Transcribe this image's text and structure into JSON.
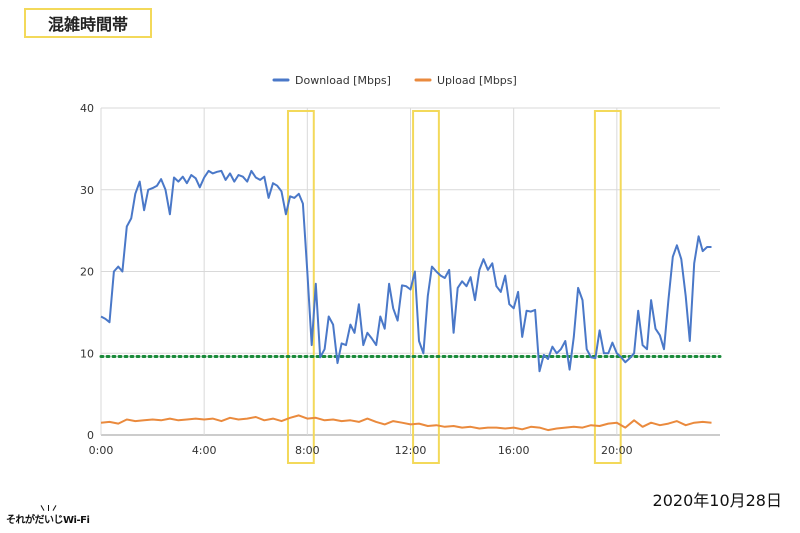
{
  "header": {
    "title": "混雑時間帯"
  },
  "footer": {
    "date": "2020年10月28日",
    "logo_text": "それがだいじWi-Fi"
  },
  "colors": {
    "download": "#4a78c8",
    "upload": "#ea8a3d",
    "threshold": "#1a8a3a",
    "highlight": "#f3d95a",
    "grid": "#d9d9d9"
  },
  "chart_data": {
    "type": "line",
    "title": "",
    "xlabel": "",
    "ylabel": "",
    "x_range_hours": [
      0,
      24
    ],
    "ylim": [
      0,
      40
    ],
    "x_ticks": [
      {
        "hour": 0,
        "label": "0:00"
      },
      {
        "hour": 4,
        "label": "4:00"
      },
      {
        "hour": 8,
        "label": "8:00"
      },
      {
        "hour": 12,
        "label": "12:00"
      },
      {
        "hour": 16,
        "label": "16:00"
      },
      {
        "hour": 20,
        "label": "20:00"
      }
    ],
    "y_ticks": [
      0,
      10,
      20,
      30,
      40
    ],
    "grid": true,
    "legend_position": "top-center",
    "threshold_line": {
      "value": 9.6,
      "style": "dotted"
    },
    "highlight_ranges": [
      [
        7.25,
        8.25
      ],
      [
        12.1,
        13.1
      ],
      [
        19.15,
        20.15
      ]
    ],
    "series": [
      {
        "name": "Download [Mbps]",
        "color": "#4a78c8",
        "points": [
          [
            0.0,
            14.5
          ],
          [
            0.17,
            14.2
          ],
          [
            0.33,
            13.8
          ],
          [
            0.5,
            20.0
          ],
          [
            0.67,
            20.6
          ],
          [
            0.83,
            20.0
          ],
          [
            1.0,
            25.5
          ],
          [
            1.17,
            26.5
          ],
          [
            1.33,
            29.5
          ],
          [
            1.5,
            31.0
          ],
          [
            1.67,
            27.5
          ],
          [
            1.83,
            30.0
          ],
          [
            2.0,
            30.2
          ],
          [
            2.17,
            30.5
          ],
          [
            2.33,
            31.3
          ],
          [
            2.5,
            30.0
          ],
          [
            2.67,
            27.0
          ],
          [
            2.83,
            31.5
          ],
          [
            3.0,
            31.0
          ],
          [
            3.17,
            31.6
          ],
          [
            3.33,
            30.8
          ],
          [
            3.5,
            31.8
          ],
          [
            3.67,
            31.4
          ],
          [
            3.83,
            30.3
          ],
          [
            4.0,
            31.5
          ],
          [
            4.17,
            32.3
          ],
          [
            4.33,
            32.0
          ],
          [
            4.5,
            32.2
          ],
          [
            4.67,
            32.3
          ],
          [
            4.83,
            31.2
          ],
          [
            5.0,
            32.0
          ],
          [
            5.17,
            31.0
          ],
          [
            5.33,
            31.8
          ],
          [
            5.5,
            31.6
          ],
          [
            5.67,
            31.0
          ],
          [
            5.83,
            32.3
          ],
          [
            6.0,
            31.5
          ],
          [
            6.17,
            31.2
          ],
          [
            6.33,
            31.6
          ],
          [
            6.5,
            29.0
          ],
          [
            6.67,
            30.8
          ],
          [
            6.83,
            30.5
          ],
          [
            7.0,
            29.8
          ],
          [
            7.17,
            27.0
          ],
          [
            7.33,
            29.2
          ],
          [
            7.5,
            29.0
          ],
          [
            7.67,
            29.5
          ],
          [
            7.83,
            28.3
          ],
          [
            8.0,
            20.0
          ],
          [
            8.17,
            11.0
          ],
          [
            8.33,
            18.5
          ],
          [
            8.5,
            9.5
          ],
          [
            8.67,
            10.5
          ],
          [
            8.83,
            14.5
          ],
          [
            9.0,
            13.5
          ],
          [
            9.17,
            8.8
          ],
          [
            9.33,
            11.2
          ],
          [
            9.5,
            11.0
          ],
          [
            9.67,
            13.5
          ],
          [
            9.83,
            12.5
          ],
          [
            10.0,
            16.0
          ],
          [
            10.17,
            11.0
          ],
          [
            10.33,
            12.5
          ],
          [
            10.5,
            11.8
          ],
          [
            10.67,
            11.0
          ],
          [
            10.83,
            14.5
          ],
          [
            11.0,
            13.0
          ],
          [
            11.17,
            18.5
          ],
          [
            11.33,
            15.5
          ],
          [
            11.5,
            14.0
          ],
          [
            11.67,
            18.3
          ],
          [
            11.83,
            18.2
          ],
          [
            12.0,
            17.8
          ],
          [
            12.17,
            20.0
          ],
          [
            12.33,
            11.5
          ],
          [
            12.5,
            10.0
          ],
          [
            12.67,
            17.0
          ],
          [
            12.83,
            20.6
          ],
          [
            13.0,
            20.0
          ],
          [
            13.17,
            19.5
          ],
          [
            13.33,
            19.2
          ],
          [
            13.5,
            20.2
          ],
          [
            13.67,
            12.5
          ],
          [
            13.83,
            18.0
          ],
          [
            14.0,
            18.8
          ],
          [
            14.17,
            18.2
          ],
          [
            14.33,
            19.3
          ],
          [
            14.5,
            16.5
          ],
          [
            14.67,
            20.2
          ],
          [
            14.83,
            21.5
          ],
          [
            15.0,
            20.2
          ],
          [
            15.17,
            21.0
          ],
          [
            15.33,
            18.2
          ],
          [
            15.5,
            17.5
          ],
          [
            15.67,
            19.5
          ],
          [
            15.83,
            16.0
          ],
          [
            16.0,
            15.5
          ],
          [
            16.17,
            17.5
          ],
          [
            16.33,
            12.0
          ],
          [
            16.5,
            15.2
          ],
          [
            16.67,
            15.1
          ],
          [
            16.83,
            15.3
          ],
          [
            17.0,
            7.8
          ],
          [
            17.17,
            9.8
          ],
          [
            17.33,
            9.3
          ],
          [
            17.5,
            10.8
          ],
          [
            17.67,
            10.0
          ],
          [
            17.83,
            10.5
          ],
          [
            18.0,
            11.5
          ],
          [
            18.17,
            8.0
          ],
          [
            18.33,
            12.0
          ],
          [
            18.5,
            18.0
          ],
          [
            18.67,
            16.5
          ],
          [
            18.83,
            10.5
          ],
          [
            19.0,
            9.5
          ],
          [
            19.17,
            9.4
          ],
          [
            19.33,
            12.8
          ],
          [
            19.5,
            10.0
          ],
          [
            19.67,
            10.0
          ],
          [
            19.83,
            11.3
          ],
          [
            20.0,
            10.0
          ],
          [
            20.17,
            9.5
          ],
          [
            20.33,
            8.9
          ],
          [
            20.5,
            9.4
          ],
          [
            20.67,
            10.0
          ],
          [
            20.83,
            15.2
          ],
          [
            21.0,
            11.0
          ],
          [
            21.17,
            10.5
          ],
          [
            21.33,
            16.5
          ],
          [
            21.5,
            13.0
          ],
          [
            21.67,
            12.2
          ],
          [
            21.83,
            10.5
          ],
          [
            22.0,
            16.5
          ],
          [
            22.17,
            21.8
          ],
          [
            22.33,
            23.2
          ],
          [
            22.5,
            21.5
          ],
          [
            22.67,
            17.0
          ],
          [
            22.83,
            11.5
          ],
          [
            23.0,
            21.0
          ],
          [
            23.17,
            24.3
          ],
          [
            23.33,
            22.5
          ],
          [
            23.5,
            23.0
          ],
          [
            23.67,
            23.0
          ]
        ]
      },
      {
        "name": "Upload [Mbps]",
        "color": "#ea8a3d",
        "points": [
          [
            0.0,
            1.5
          ],
          [
            0.33,
            1.6
          ],
          [
            0.67,
            1.4
          ],
          [
            1.0,
            1.9
          ],
          [
            1.33,
            1.7
          ],
          [
            1.67,
            1.8
          ],
          [
            2.0,
            1.9
          ],
          [
            2.33,
            1.8
          ],
          [
            2.67,
            2.0
          ],
          [
            3.0,
            1.8
          ],
          [
            3.33,
            1.9
          ],
          [
            3.67,
            2.0
          ],
          [
            4.0,
            1.9
          ],
          [
            4.33,
            2.0
          ],
          [
            4.67,
            1.7
          ],
          [
            5.0,
            2.1
          ],
          [
            5.33,
            1.9
          ],
          [
            5.67,
            2.0
          ],
          [
            6.0,
            2.2
          ],
          [
            6.33,
            1.8
          ],
          [
            6.67,
            2.0
          ],
          [
            7.0,
            1.7
          ],
          [
            7.33,
            2.1
          ],
          [
            7.67,
            2.4
          ],
          [
            8.0,
            2.0
          ],
          [
            8.33,
            2.1
          ],
          [
            8.67,
            1.8
          ],
          [
            9.0,
            1.9
          ],
          [
            9.33,
            1.7
          ],
          [
            9.67,
            1.8
          ],
          [
            10.0,
            1.6
          ],
          [
            10.33,
            2.0
          ],
          [
            10.67,
            1.6
          ],
          [
            11.0,
            1.3
          ],
          [
            11.33,
            1.7
          ],
          [
            11.67,
            1.5
          ],
          [
            12.0,
            1.3
          ],
          [
            12.33,
            1.4
          ],
          [
            12.67,
            1.1
          ],
          [
            13.0,
            1.2
          ],
          [
            13.33,
            1.0
          ],
          [
            13.67,
            1.1
          ],
          [
            14.0,
            0.9
          ],
          [
            14.33,
            1.0
          ],
          [
            14.67,
            0.8
          ],
          [
            15.0,
            0.9
          ],
          [
            15.33,
            0.9
          ],
          [
            15.67,
            0.8
          ],
          [
            16.0,
            0.9
          ],
          [
            16.33,
            0.7
          ],
          [
            16.67,
            1.0
          ],
          [
            17.0,
            0.9
          ],
          [
            17.33,
            0.6
          ],
          [
            17.67,
            0.8
          ],
          [
            18.0,
            0.9
          ],
          [
            18.33,
            1.0
          ],
          [
            18.67,
            0.9
          ],
          [
            19.0,
            1.2
          ],
          [
            19.33,
            1.1
          ],
          [
            19.67,
            1.4
          ],
          [
            20.0,
            1.5
          ],
          [
            20.33,
            0.9
          ],
          [
            20.67,
            1.8
          ],
          [
            21.0,
            1.0
          ],
          [
            21.33,
            1.5
          ],
          [
            21.67,
            1.2
          ],
          [
            22.0,
            1.4
          ],
          [
            22.33,
            1.7
          ],
          [
            22.67,
            1.2
          ],
          [
            23.0,
            1.5
          ],
          [
            23.33,
            1.6
          ],
          [
            23.67,
            1.5
          ]
        ]
      }
    ]
  }
}
